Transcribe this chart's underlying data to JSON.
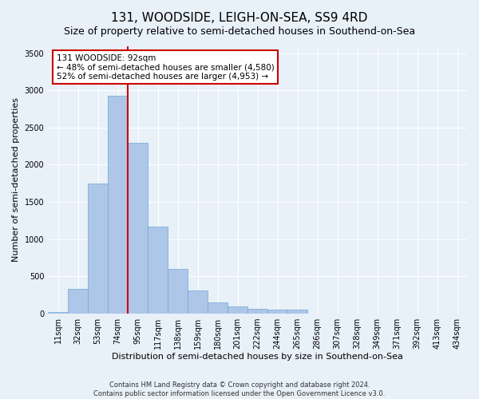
{
  "title": "131, WOODSIDE, LEIGH-ON-SEA, SS9 4RD",
  "subtitle": "Size of property relative to semi-detached houses in Southend-on-Sea",
  "xlabel": "Distribution of semi-detached houses by size in Southend-on-Sea",
  "ylabel": "Number of semi-detached properties",
  "footer_line1": "Contains HM Land Registry data © Crown copyright and database right 2024.",
  "footer_line2": "Contains public sector information licensed under the Open Government Licence v3.0.",
  "bar_labels": [
    "11sqm",
    "32sqm",
    "53sqm",
    "74sqm",
    "95sqm",
    "117sqm",
    "138sqm",
    "159sqm",
    "180sqm",
    "201sqm",
    "222sqm",
    "244sqm",
    "265sqm",
    "286sqm",
    "307sqm",
    "328sqm",
    "349sqm",
    "371sqm",
    "392sqm",
    "413sqm",
    "434sqm"
  ],
  "bar_values": [
    20,
    330,
    1750,
    2930,
    2300,
    1165,
    600,
    310,
    150,
    95,
    60,
    50,
    50,
    0,
    0,
    0,
    0,
    0,
    0,
    0,
    0
  ],
  "bar_color": "#aec6e8",
  "bar_edge_color": "#6aaad4",
  "vline_index": 4,
  "vline_color": "#cc0000",
  "annotation_text": "131 WOODSIDE: 92sqm\n← 48% of semi-detached houses are smaller (4,580)\n52% of semi-detached houses are larger (4,953) →",
  "annotation_box_facecolor": "#ffffff",
  "annotation_box_edgecolor": "#cc0000",
  "ylim": [
    0,
    3600
  ],
  "yticks": [
    0,
    500,
    1000,
    1500,
    2000,
    2500,
    3000,
    3500
  ],
  "bg_color": "#e8f0f8",
  "plot_bg_color": "#e8f0f8",
  "title_fontsize": 11,
  "subtitle_fontsize": 9,
  "axis_label_fontsize": 8,
  "tick_fontsize": 7,
  "footer_fontsize": 6
}
